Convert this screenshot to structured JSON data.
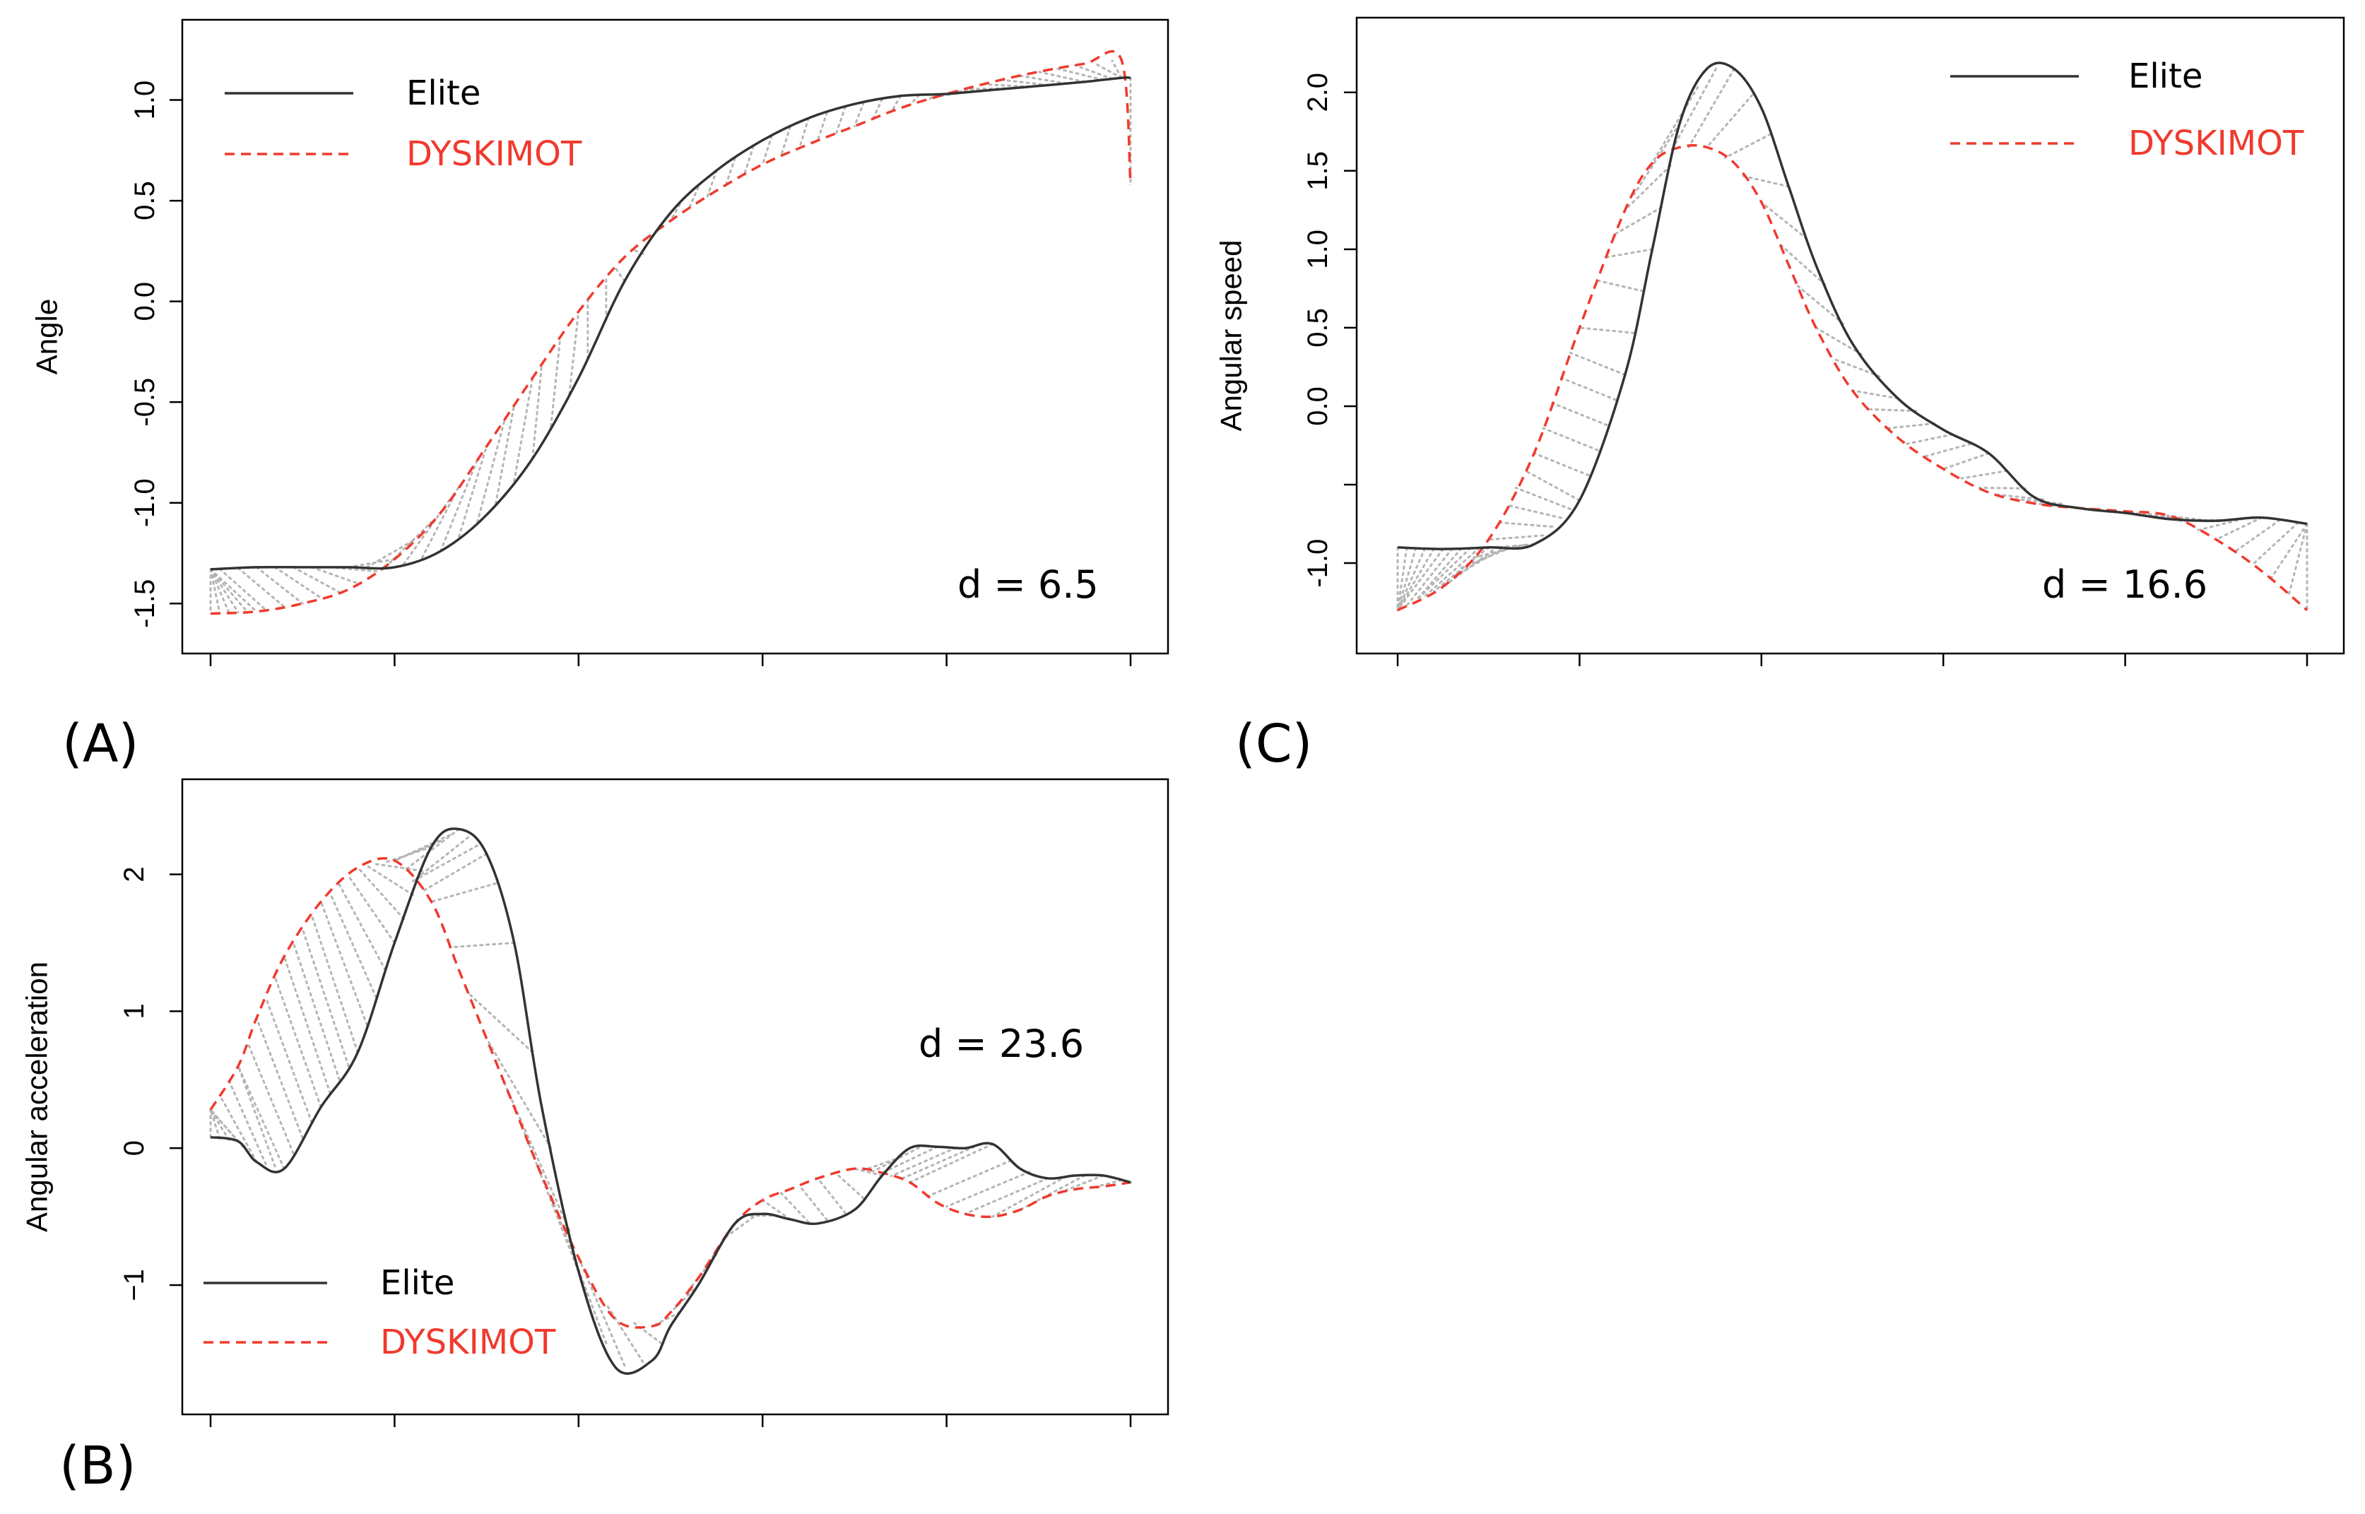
{
  "figure": {
    "colors": {
      "elite": "#333333",
      "dyskimot": "#f03a2e",
      "warp": "#b5b5b5",
      "frame": "#000000"
    }
  },
  "chart_data": [
    {
      "type": "line",
      "panel_label": "(A)",
      "ylabel": "Angle",
      "xlabel": "",
      "xlim": [
        0,
        100
      ],
      "ylim": [
        -1.65,
        1.3
      ],
      "yticks": [
        -1.5,
        -1.0,
        -0.5,
        0.0,
        0.5,
        1.0
      ],
      "ytick_labels": [
        "-1.5",
        "-1.0",
        "-0.5",
        "0.0",
        "0.5",
        "1.0"
      ],
      "xticks": [
        0,
        20,
        40,
        60,
        80,
        100
      ],
      "legend": {
        "position": "top-left",
        "entries": [
          "Elite",
          "DYSKIMOT"
        ]
      },
      "annotation": "d = 6.5",
      "x": [
        0,
        5,
        10,
        15,
        20,
        25,
        30,
        35,
        40,
        45,
        50,
        55,
        60,
        65,
        70,
        75,
        80,
        85,
        90,
        95,
        99,
        100
      ],
      "series": [
        {
          "name": "Elite",
          "values": [
            -1.33,
            -1.32,
            -1.32,
            -1.32,
            -1.32,
            -1.24,
            -1.06,
            -0.78,
            -0.38,
            0.1,
            0.44,
            0.65,
            0.8,
            0.91,
            0.98,
            1.02,
            1.03,
            1.05,
            1.07,
            1.09,
            1.11,
            1.11
          ]
        },
        {
          "name": "DYSKIMOT",
          "values": [
            -1.55,
            -1.54,
            -1.5,
            -1.43,
            -1.28,
            -1.05,
            -0.72,
            -0.38,
            -0.05,
            0.22,
            0.4,
            0.55,
            0.68,
            0.78,
            0.87,
            0.96,
            1.03,
            1.09,
            1.14,
            1.18,
            1.2,
            0.58
          ]
        }
      ],
      "warp_pairs": [
        [
          0,
          0
        ],
        [
          0,
          1
        ],
        [
          0,
          2
        ],
        [
          0,
          3
        ],
        [
          0,
          4
        ],
        [
          0,
          5
        ],
        [
          1,
          6
        ],
        [
          3,
          8
        ],
        [
          5,
          10
        ],
        [
          7,
          12
        ],
        [
          9,
          14
        ],
        [
          11,
          16
        ],
        [
          13,
          18
        ],
        [
          15,
          20
        ],
        [
          17,
          22
        ],
        [
          19,
          24
        ],
        [
          21,
          26
        ],
        [
          23,
          27
        ],
        [
          25,
          29
        ],
        [
          27,
          30
        ],
        [
          29,
          32
        ],
        [
          31,
          33
        ],
        [
          33,
          35
        ],
        [
          35,
          36
        ],
        [
          37,
          38
        ],
        [
          39,
          40
        ],
        [
          41,
          41
        ],
        [
          43,
          43
        ],
        [
          45,
          44
        ],
        [
          47,
          46
        ],
        [
          49,
          48
        ],
        [
          51,
          50
        ],
        [
          53,
          52
        ],
        [
          55,
          54
        ],
        [
          57,
          56
        ],
        [
          59,
          58
        ],
        [
          61,
          60
        ],
        [
          63,
          62
        ],
        [
          65,
          64
        ],
        [
          67,
          66
        ],
        [
          69,
          68
        ],
        [
          71,
          70
        ],
        [
          73,
          72
        ],
        [
          75,
          74
        ],
        [
          77,
          76
        ],
        [
          79,
          78
        ],
        [
          81,
          79
        ],
        [
          83,
          80
        ],
        [
          85,
          81
        ],
        [
          87,
          82
        ],
        [
          89,
          84
        ],
        [
          91,
          86
        ],
        [
          93,
          88
        ],
        [
          95,
          90
        ],
        [
          97,
          92
        ],
        [
          98,
          94
        ],
        [
          99,
          96
        ],
        [
          99,
          98
        ],
        [
          100,
          100
        ]
      ]
    },
    {
      "type": "line",
      "panel_label": "(B)",
      "ylabel": "Angular acceleration",
      "xlabel": "",
      "xlim": [
        0,
        100
      ],
      "ylim": [
        -1.8,
        2.55
      ],
      "yticks": [
        -1,
        0,
        1,
        2
      ],
      "ytick_labels": [
        "−1",
        "0",
        "1",
        "2"
      ],
      "xticks": [
        0,
        20,
        40,
        60,
        80,
        100
      ],
      "legend": {
        "position": "bottom-left",
        "entries": [
          "Elite",
          "DYSKIMOT"
        ]
      },
      "annotation": "d = 23.6",
      "x": [
        0,
        3,
        5,
        8,
        12,
        16,
        20,
        24,
        27,
        30,
        33,
        36,
        40,
        44,
        48,
        50,
        53,
        57,
        60,
        63,
        66,
        70,
        73,
        76,
        79,
        82,
        85,
        88,
        91,
        94,
        97,
        100
      ],
      "series": [
        {
          "name": "Elite",
          "values": [
            0.08,
            0.05,
            -0.1,
            -0.15,
            0.3,
            0.7,
            1.5,
            2.2,
            2.33,
            2.15,
            1.5,
            0.3,
            -0.9,
            -1.6,
            -1.55,
            -1.3,
            -1.0,
            -0.55,
            -0.48,
            -0.52,
            -0.55,
            -0.45,
            -0.2,
            0.0,
            0.01,
            0.0,
            0.03,
            -0.15,
            -0.22,
            -0.2,
            -0.2,
            -0.25
          ]
        },
        {
          "name": "DYSKIMOT",
          "values": [
            0.28,
            0.6,
            0.95,
            1.4,
            1.8,
            2.05,
            2.1,
            1.8,
            1.3,
            0.8,
            0.3,
            -0.2,
            -0.8,
            -1.25,
            -1.3,
            -1.2,
            -0.95,
            -0.55,
            -0.38,
            -0.3,
            -0.22,
            -0.15,
            -0.18,
            -0.25,
            -0.4,
            -0.48,
            -0.5,
            -0.45,
            -0.35,
            -0.3,
            -0.28,
            -0.25
          ]
        }
      ],
      "warp_pairs": [
        [
          0,
          0
        ],
        [
          1,
          0
        ],
        [
          2,
          0
        ],
        [
          3,
          0
        ],
        [
          4,
          0
        ],
        [
          5,
          1
        ],
        [
          6,
          2
        ],
        [
          7,
          3
        ],
        [
          8,
          3
        ],
        [
          9,
          4
        ],
        [
          10,
          5
        ],
        [
          11,
          6
        ],
        [
          12,
          7
        ],
        [
          13,
          8
        ],
        [
          14,
          9
        ],
        [
          15,
          10
        ],
        [
          16,
          11
        ],
        [
          17,
          12
        ],
        [
          18,
          13
        ],
        [
          19,
          14
        ],
        [
          20,
          15
        ],
        [
          21,
          16
        ],
        [
          22,
          17
        ],
        [
          23,
          18
        ],
        [
          24,
          19
        ],
        [
          25,
          20
        ],
        [
          26,
          20
        ],
        [
          27,
          21
        ],
        [
          28,
          22
        ],
        [
          29,
          22
        ],
        [
          30,
          23
        ],
        [
          31,
          24
        ],
        [
          33,
          26
        ],
        [
          35,
          28
        ],
        [
          37,
          30
        ],
        [
          39,
          32
        ],
        [
          41,
          34
        ],
        [
          43,
          37
        ],
        [
          45,
          40
        ],
        [
          47,
          43
        ],
        [
          49,
          46
        ],
        [
          51,
          48
        ],
        [
          53,
          50
        ],
        [
          55,
          52
        ],
        [
          57,
          54
        ],
        [
          59,
          56
        ],
        [
          61,
          58
        ],
        [
          63,
          60
        ],
        [
          65,
          62
        ],
        [
          67,
          64
        ],
        [
          69,
          66
        ],
        [
          71,
          68
        ],
        [
          73,
          70
        ],
        [
          75,
          71
        ],
        [
          77,
          72
        ],
        [
          79,
          73
        ],
        [
          81,
          74
        ],
        [
          83,
          75
        ],
        [
          85,
          76
        ],
        [
          87,
          78
        ],
        [
          89,
          80
        ],
        [
          91,
          82
        ],
        [
          93,
          85
        ],
        [
          95,
          88
        ],
        [
          97,
          92
        ],
        [
          99,
          96
        ],
        [
          100,
          100
        ]
      ]
    },
    {
      "type": "line",
      "panel_label": "(C)",
      "ylabel": "Angular speed",
      "xlabel": "",
      "xlim": [
        0,
        100
      ],
      "ylim": [
        -1.45,
        2.35
      ],
      "yticks": [
        -1.0,
        -0.5,
        0.0,
        0.5,
        1.0,
        1.5,
        2.0
      ],
      "ytick_labels": [
        "-1.0",
        "",
        "0.0",
        "0.5",
        "1.0",
        "1.5",
        "2.0"
      ],
      "xticks": [
        0,
        20,
        40,
        60,
        80,
        100
      ],
      "legend": {
        "position": "top-right",
        "entries": [
          "Elite",
          "DYSKIMOT"
        ]
      },
      "annotation": "d = 16.6",
      "x": [
        0,
        5,
        10,
        15,
        20,
        25,
        28,
        31,
        34,
        37,
        40,
        43,
        46,
        50,
        55,
        60,
        65,
        70,
        75,
        80,
        85,
        90,
        95,
        100
      ],
      "series": [
        {
          "name": "Elite",
          "values": [
            -0.9,
            -0.91,
            -0.9,
            -0.88,
            -0.6,
            0.2,
            1.0,
            1.8,
            2.15,
            2.15,
            1.9,
            1.4,
            0.9,
            0.4,
            0.05,
            -0.15,
            -0.3,
            -0.58,
            -0.65,
            -0.68,
            -0.72,
            -0.73,
            -0.71,
            -0.75
          ]
        },
        {
          "name": "DYSKIMOT",
          "values": [
            -1.3,
            -1.15,
            -0.85,
            -0.3,
            0.5,
            1.25,
            1.55,
            1.65,
            1.65,
            1.55,
            1.3,
            0.9,
            0.5,
            0.1,
            -0.2,
            -0.4,
            -0.55,
            -0.62,
            -0.65,
            -0.67,
            -0.7,
            -0.85,
            -1.05,
            -1.3
          ]
        }
      ],
      "warp_pairs": [
        [
          0,
          0
        ],
        [
          1,
          0
        ],
        [
          2,
          0
        ],
        [
          3,
          0
        ],
        [
          4,
          0
        ],
        [
          5,
          0
        ],
        [
          6,
          1
        ],
        [
          7,
          2
        ],
        [
          8,
          2
        ],
        [
          9,
          3
        ],
        [
          10,
          4
        ],
        [
          11,
          5
        ],
        [
          12,
          6
        ],
        [
          13,
          7
        ],
        [
          14,
          8
        ],
        [
          15,
          9
        ],
        [
          16,
          10
        ],
        [
          17,
          11
        ],
        [
          18,
          12
        ],
        [
          19,
          13
        ],
        [
          20,
          14
        ],
        [
          21,
          15
        ],
        [
          22,
          16
        ],
        [
          23,
          17
        ],
        [
          24,
          18
        ],
        [
          25,
          19
        ],
        [
          26,
          20
        ],
        [
          27,
          22
        ],
        [
          28,
          23
        ],
        [
          29,
          24
        ],
        [
          30,
          25
        ],
        [
          31,
          26
        ],
        [
          33,
          28
        ],
        [
          35,
          30
        ],
        [
          37,
          32
        ],
        [
          39,
          34
        ],
        [
          41,
          36
        ],
        [
          43,
          38
        ],
        [
          45,
          40
        ],
        [
          47,
          42
        ],
        [
          49,
          44
        ],
        [
          51,
          46
        ],
        [
          53,
          48
        ],
        [
          55,
          50
        ],
        [
          57,
          52
        ],
        [
          59,
          54
        ],
        [
          61,
          56
        ],
        [
          63,
          58
        ],
        [
          65,
          60
        ],
        [
          67,
          62
        ],
        [
          69,
          64
        ],
        [
          71,
          66
        ],
        [
          73,
          68
        ],
        [
          75,
          70
        ],
        [
          77,
          72
        ],
        [
          79,
          74
        ],
        [
          81,
          76
        ],
        [
          83,
          78
        ],
        [
          85,
          80
        ],
        [
          87,
          82
        ],
        [
          89,
          84
        ],
        [
          91,
          86
        ],
        [
          93,
          88
        ],
        [
          95,
          90
        ],
        [
          97,
          92
        ],
        [
          99,
          94
        ],
        [
          100,
          96
        ],
        [
          100,
          98
        ],
        [
          100,
          100
        ]
      ]
    }
  ]
}
